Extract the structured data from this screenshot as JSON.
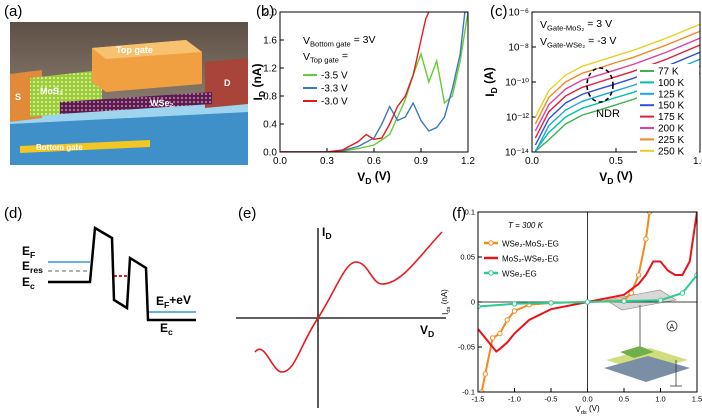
{
  "panel_labels": [
    "(a)",
    "(b)",
    "(c)",
    "(d)",
    "(e)",
    "(f)"
  ],
  "device": {
    "top_gate": "Top gate",
    "mos2": "MoS₂",
    "wse2": "WSe₂",
    "source": "S",
    "drain": "D",
    "bottom_gate": "Bottom gate"
  },
  "band_diagram": {
    "labels": [
      {
        "main": "E",
        "sub": "F"
      },
      {
        "main": "E",
        "sub": "res"
      },
      {
        "main": "E",
        "sub": "c"
      },
      {
        "main": "E",
        "sub": "F",
        "rest": "+eV"
      },
      {
        "main": "E",
        "sub": "c"
      }
    ]
  },
  "schematic": {
    "y_label": {
      "main": "I",
      "sub": "D"
    },
    "x_label": {
      "main": "V",
      "sub": "D"
    }
  },
  "chart_data": [
    {
      "type": "line",
      "xlabel": {
        "main": "V",
        "sub": "D",
        "rest": " (V)"
      },
      "ylabel": {
        "main": "I",
        "sub": "D",
        "rest": " (nA)"
      },
      "xlim": [
        0,
        1.2
      ],
      "xticks": [
        {
          "value": 0,
          "label": "0.0"
        },
        0.3,
        0.6,
        0.9,
        1.2
      ],
      "ylim": [
        0,
        2
      ],
      "yticks": [
        {
          "value": 0,
          "label": "0.0"
        },
        0.4,
        0.8,
        1.2,
        1.6,
        {
          "value": 2,
          "label": "2.0"
        }
      ],
      "annotations": [
        {
          "main": "V",
          "sub": "Bottom gate",
          "rest": " = 3V"
        },
        {
          "main": "V",
          "sub": "Top gate",
          "rest": " ="
        }
      ],
      "legend": "upper left",
      "series": [
        {
          "name": "-3.5 V",
          "color": "#66cc33",
          "x": [
            0,
            0.3,
            0.4,
            0.5,
            0.6,
            0.7,
            0.75,
            0.8,
            0.85,
            0.9,
            0.95,
            1.0,
            1.05,
            1.1,
            1.15,
            1.2
          ],
          "values": [
            0,
            0,
            0.01,
            0.05,
            0.1,
            0.25,
            0.5,
            0.75,
            1.1,
            1.4,
            1.0,
            1.3,
            0.7,
            0.8,
            1.3,
            2.0
          ]
        },
        {
          "name": "-3.3 V",
          "color": "#3a78c3",
          "x": [
            0,
            0.3,
            0.4,
            0.5,
            0.6,
            0.65,
            0.7,
            0.75,
            0.8,
            0.85,
            0.9,
            0.95,
            1.0,
            1.05,
            1.1,
            1.15,
            1.18
          ],
          "values": [
            0,
            0,
            0.02,
            0.08,
            0.2,
            0.4,
            0.65,
            0.45,
            0.5,
            0.7,
            0.45,
            0.3,
            0.35,
            0.5,
            0.9,
            1.4,
            2.0
          ]
        },
        {
          "name": "-3.0 V",
          "color": "#e8191f",
          "x": [
            0,
            0.3,
            0.4,
            0.5,
            0.55,
            0.6,
            0.65,
            0.7,
            0.75,
            0.8,
            0.85,
            0.9,
            0.93,
            0.95
          ],
          "values": [
            0,
            0,
            0.03,
            0.15,
            0.25,
            0.18,
            0.2,
            0.4,
            0.65,
            0.8,
            1.1,
            1.6,
            1.9,
            2.0
          ]
        }
      ]
    },
    {
      "type": "line",
      "log_y": true,
      "xlabel": {
        "main": "V",
        "sub": "D",
        "rest": " (V)"
      },
      "ylabel": {
        "main": "I",
        "sub": "D",
        "rest": " (A)"
      },
      "xlim": [
        0,
        1
      ],
      "xticks": [
        {
          "value": 0,
          "label": "0.0"
        },
        0.5,
        {
          "value": 1,
          "label": "1.0"
        }
      ],
      "ylim": [
        1e-14,
        1e-06
      ],
      "yticks": [
        {
          "value": 1e-14,
          "label": "10⁻¹⁴"
        },
        {
          "value": 1e-12,
          "label": "10⁻¹²"
        },
        {
          "value": 1e-10,
          "label": "10⁻¹⁰"
        },
        {
          "value": 1e-08,
          "label": "10⁻⁸"
        },
        {
          "value": 1e-06,
          "label": "10⁻⁶"
        }
      ],
      "annotations": [
        {
          "main": "V",
          "sub": "Gate-MoS₂",
          "rest": " = 3 V"
        },
        {
          "main": "V",
          "sub": "Gate-WSe₂",
          "rest": " = -3 V"
        }
      ],
      "ndr_label": "NDR",
      "legend": "right",
      "x": [
        0.02,
        0.1,
        0.2,
        0.3,
        0.4,
        0.5,
        0.6,
        0.8,
        1.0
      ],
      "series": [
        {
          "name": "77 K",
          "color": "#3cb44b",
          "values": [
            1.1e-14,
            5e-14,
            4e-13,
            1.3e-12,
            2.5e-12,
            5e-12,
            1e-11,
            5e-11,
            3.2e-10
          ]
        },
        {
          "name": "100 K",
          "color": "#00c0a0",
          "values": [
            1.2e-14,
            1.3e-13,
            1e-12,
            3.2e-12,
            6.3e-12,
            1.3e-11,
            2.5e-11,
            1.3e-10,
            7.9e-10
          ]
        },
        {
          "name": "125 K",
          "color": "#18a8e0",
          "values": [
            1e-14,
            3.2e-13,
            2.5e-12,
            7.9e-12,
            1.6e-11,
            3.2e-11,
            6.3e-11,
            3.2e-10,
            2e-09
          ]
        },
        {
          "name": "150 K",
          "color": "#3050d8",
          "values": [
            2.5e-14,
            7.9e-13,
            6.3e-12,
            2e-11,
            4e-11,
            7.9e-11,
            1.6e-10,
            7.9e-10,
            5e-09
          ]
        },
        {
          "name": "175 K",
          "color": "#e0203a",
          "values": [
            6.3e-14,
            2e-12,
            1.6e-11,
            5e-11,
            1e-10,
            2e-10,
            4e-10,
            2e-09,
            1.3e-08
          ]
        },
        {
          "name": "200 K",
          "color": "#e040a0",
          "values": [
            1.6e-13,
            5e-12,
            4e-11,
            1.3e-10,
            2.5e-10,
            5e-10,
            1e-09,
            5e-09,
            3.2e-08
          ]
        },
        {
          "name": "225 K",
          "color": "#f08a20",
          "values": [
            4e-13,
            1.3e-11,
            1e-10,
            3.2e-10,
            6.3e-10,
            1.3e-09,
            2.5e-09,
            1.3e-08,
            7.9e-08
          ]
        },
        {
          "name": "250 K",
          "color": "#e8d020",
          "values": [
            1e-12,
            3.2e-11,
            2.5e-10,
            7.9e-10,
            1.6e-09,
            3.2e-09,
            6.3e-09,
            3.2e-08,
            2e-07
          ]
        }
      ]
    },
    {
      "type": "line",
      "xlabel": {
        "main": "V",
        "sub": "ds",
        "rest": " (V)"
      },
      "ylabel": {
        "main": "I",
        "sub": "ds",
        "rest": " (nA)"
      },
      "xlim": [
        -1.5,
        1.5
      ],
      "xticks": [
        -1.5,
        {
          "value": -1,
          "label": "-1.0"
        },
        -0.5,
        {
          "value": 0,
          "label": "0.0"
        },
        0.5,
        {
          "value": 1,
          "label": "1.0"
        },
        1.5
      ],
      "ylim": [
        -0.1,
        0.1
      ],
      "yticks": [
        -0.1,
        -0.05,
        0,
        0.05,
        0.1
      ],
      "annotations": [
        "T = 300 K"
      ],
      "legend": "upper left",
      "series": [
        {
          "name": "WSe₂-MoS₂-EG",
          "color": "#f28a1e",
          "marker": "circle",
          "x": [
            -1.45,
            -1.4,
            -1.3,
            -1.2,
            -1.1,
            -1.0,
            -0.8,
            -0.5,
            0,
            0.5,
            0.6,
            0.7,
            0.8,
            0.85
          ],
          "values": [
            -0.1,
            -0.08,
            -0.04,
            -0.035,
            -0.02,
            -0.01,
            -0.003,
            -0.001,
            0,
            0.002,
            0.01,
            0.03,
            0.07,
            0.1
          ]
        },
        {
          "name": "MoS₂-WSe₂-EG",
          "color": "#e8141c",
          "x": [
            -1.5,
            -1.4,
            -1.3,
            -1.25,
            -1.2,
            -1.1,
            -1.0,
            -0.8,
            -0.5,
            0,
            0.5,
            0.7,
            0.8,
            0.9,
            1.0,
            1.1,
            1.2,
            1.3,
            1.4,
            1.5
          ],
          "values": [
            -0.03,
            -0.04,
            -0.05,
            -0.055,
            -0.052,
            -0.045,
            -0.035,
            -0.02,
            -0.008,
            0,
            0.008,
            0.02,
            0.03,
            0.045,
            0.045,
            0.035,
            0.03,
            0.03,
            0.045,
            0.1
          ]
        },
        {
          "name": "WSe₂-EG",
          "color": "#2ecc90",
          "marker": "circle",
          "x": [
            -1.5,
            -1.0,
            -0.5,
            0,
            0.5,
            1.0,
            1.3,
            1.5
          ],
          "values": [
            -0.005,
            -0.002,
            -0.001,
            0,
            0.001,
            0.002,
            0.01,
            0.03
          ]
        }
      ]
    }
  ]
}
